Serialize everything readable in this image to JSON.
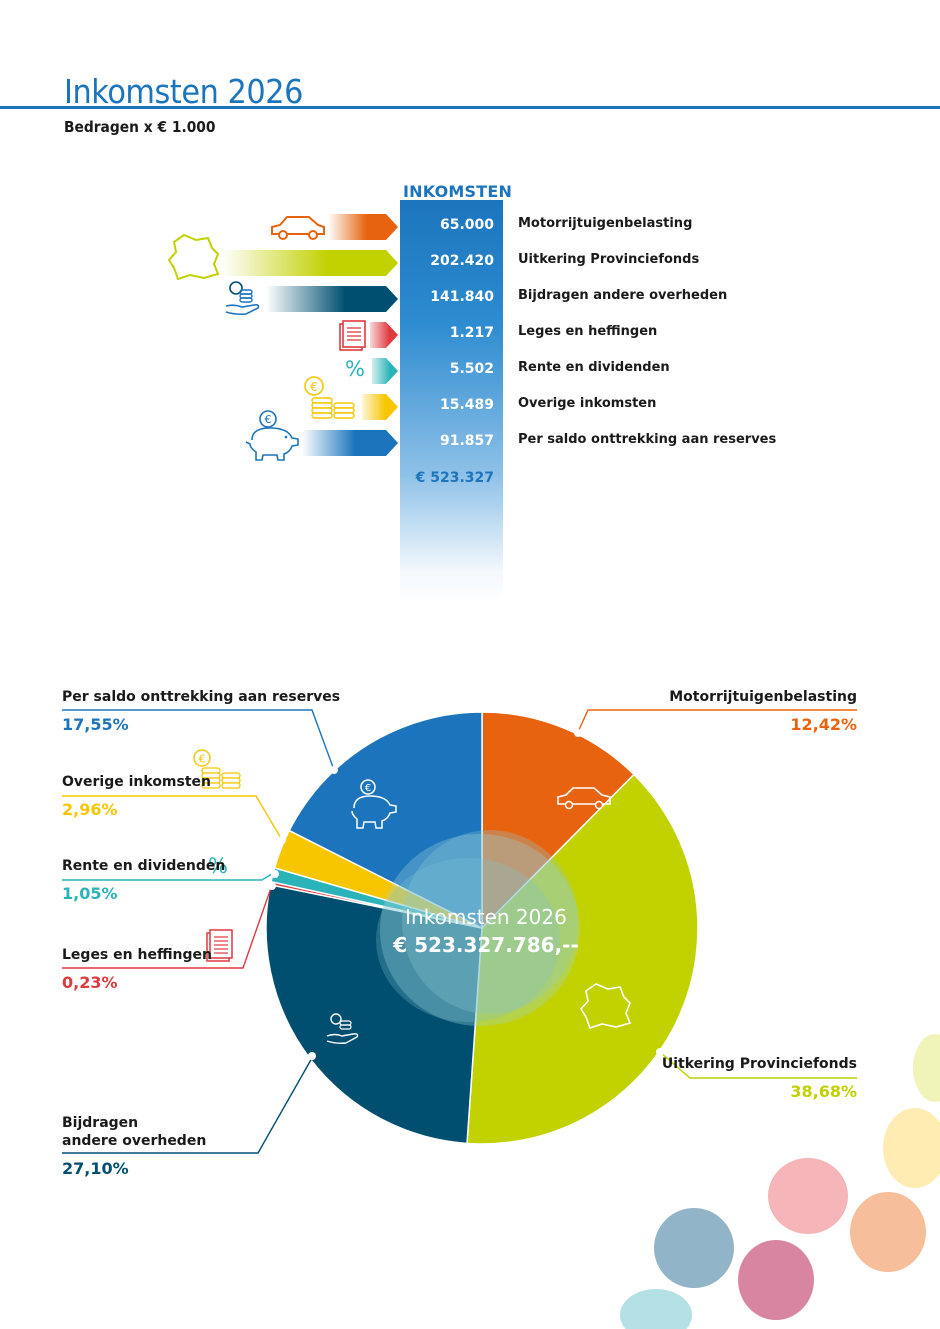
{
  "page": {
    "title": "Inkomsten 2026",
    "subtitle": "Bedragen x € 1.000"
  },
  "table": {
    "header": "INKOMSTEN",
    "rows": [
      {
        "value": "65.000",
        "label": "Motorrijtuigenbelasting",
        "color": "#e8630f",
        "icon": "car-icon"
      },
      {
        "value": "202.420",
        "label": "Uitkering Provinciefonds",
        "color": "#c2d100",
        "icon": "province-map-icon"
      },
      {
        "value": "141.840",
        "label": "Bijdragen andere overheden",
        "color": "#004f71",
        "icon": "hand-coins-icon"
      },
      {
        "value": "1.217",
        "label": "Leges en heffingen",
        "color": "#e0393e",
        "icon": "document-stack-icon"
      },
      {
        "value": "5.502",
        "label": "Rente en dividenden",
        "color": "#2ab3b8",
        "icon": "percent-icon"
      },
      {
        "value": "15.489",
        "label": "Overige inkomsten",
        "color": "#f7c600",
        "icon": "coins-icon"
      },
      {
        "value": "91.857",
        "label": "Per saldo onttrekking aan reserves",
        "color": "#1c75bc",
        "icon": "piggy-bank-icon"
      }
    ],
    "total": "€ 523.327"
  },
  "pie": {
    "center_title": "Inkomsten 2026",
    "center_amount": "€ 523.327.786,--"
  },
  "chart_data": {
    "type": "pie",
    "title": "Inkomsten 2026",
    "slices": [
      {
        "label": "Motorrijtuigenbelasting",
        "percent_label": "12,42%",
        "value": 12.42,
        "color": "#e8630f"
      },
      {
        "label": "Uitkering Provinciefonds",
        "percent_label": "38,68%",
        "value": 38.68,
        "color": "#c2d100"
      },
      {
        "label": "Bijdragen andere overheden",
        "percent_label": "27,10%",
        "value": 27.1,
        "color": "#004f71"
      },
      {
        "label": "Leges en heffingen",
        "percent_label": "0,23%",
        "value": 0.23,
        "color": "#e0393e"
      },
      {
        "label": "Rente en dividenden",
        "percent_label": "1,05%",
        "value": 1.05,
        "color": "#2ab3b8"
      },
      {
        "label": "Overige inkomsten",
        "percent_label": "2,96%",
        "value": 2.96,
        "color": "#f7c600"
      },
      {
        "label": "Per saldo onttrekking aan reserves",
        "percent_label": "17,55%",
        "value": 17.55,
        "color": "#1c75bc"
      }
    ]
  },
  "callouts": {
    "reserves": {
      "name": "Per saldo onttrekking aan reserves",
      "pct": "17,55%"
    },
    "overige": {
      "name": "Overige inkomsten",
      "pct": "2,96%"
    },
    "rente": {
      "name": "Rente en dividenden",
      "pct": "1,05%"
    },
    "leges": {
      "name": "Leges en heffingen",
      "pct": "0,23%"
    },
    "bijdragen_line1": "Bijdragen",
    "bijdragen_line2": "andere overheden",
    "bijdragen_pct": "27,10%",
    "motor": {
      "name": "Motorrijtuigenbelasting",
      "pct": "12,42%"
    },
    "provinciefonds": {
      "name": "Uitkering Provinciefonds",
      "pct": "38,68%"
    }
  }
}
